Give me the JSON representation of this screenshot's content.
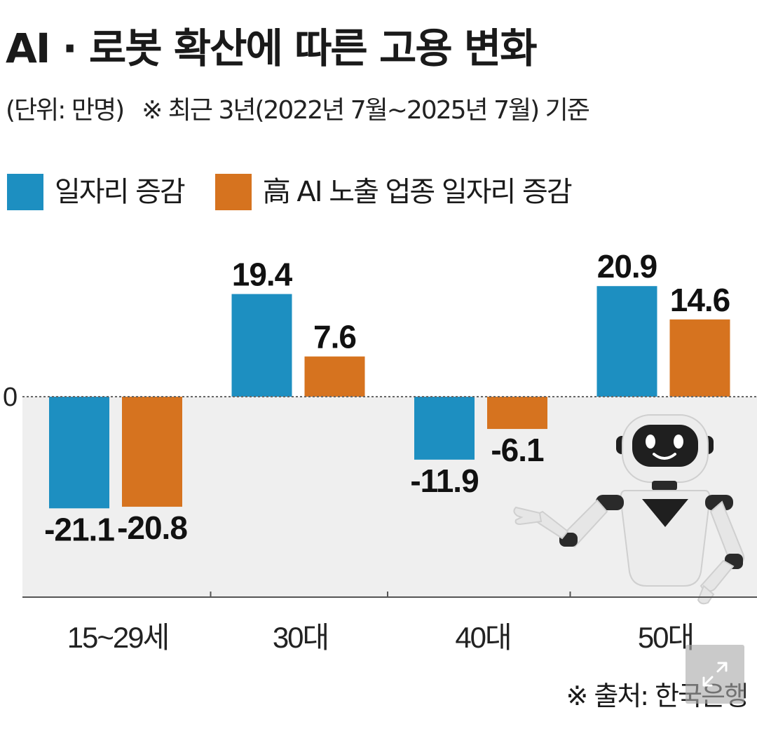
{
  "title": "AI · 로봇 확산에 따른 고용 변화",
  "subtitle": {
    "unit": "(단위: 만명)",
    "note": "※ 최근 3년(2022년 7월~2025년 7월) 기준"
  },
  "legend": [
    {
      "label": "일자리 증감",
      "color": "#1d8fc1"
    },
    {
      "label": "高 AI 노출 업종 일자리 증감",
      "color": "#d6731f"
    }
  ],
  "source": "※ 출처: 한국은행",
  "chart_data": {
    "type": "bar",
    "title": "AI · 로봇 확산에 따른 고용 변화",
    "unit": "(단위: 만명)",
    "categories": [
      "15~29세",
      "30대",
      "40대",
      "50대"
    ],
    "series": [
      {
        "name": "일자리 증감",
        "values": [
          -21.1,
          19.4,
          -11.9,
          20.9
        ],
        "labels": [
          "-21.1",
          "19.4",
          "-11.9",
          "20.9"
        ],
        "color": "#1d8fc1"
      },
      {
        "name": "高 AI 노출 업종 일자리 증감",
        "values": [
          -20.8,
          7.6,
          -6.1,
          14.6
        ],
        "labels": [
          "-20.8",
          "7.6",
          "-6.1",
          "14.6"
        ],
        "color": "#d6731f"
      }
    ],
    "zero_label": "0",
    "grid": false,
    "legend_position": "top-left"
  },
  "colors": {
    "negative_area": "#efefef",
    "axis": "#555555",
    "robot_body": "#e8e8e8",
    "robot_dark": "#222222"
  },
  "icons": {
    "expand": "expand-icon",
    "robot": "robot-illustration"
  }
}
